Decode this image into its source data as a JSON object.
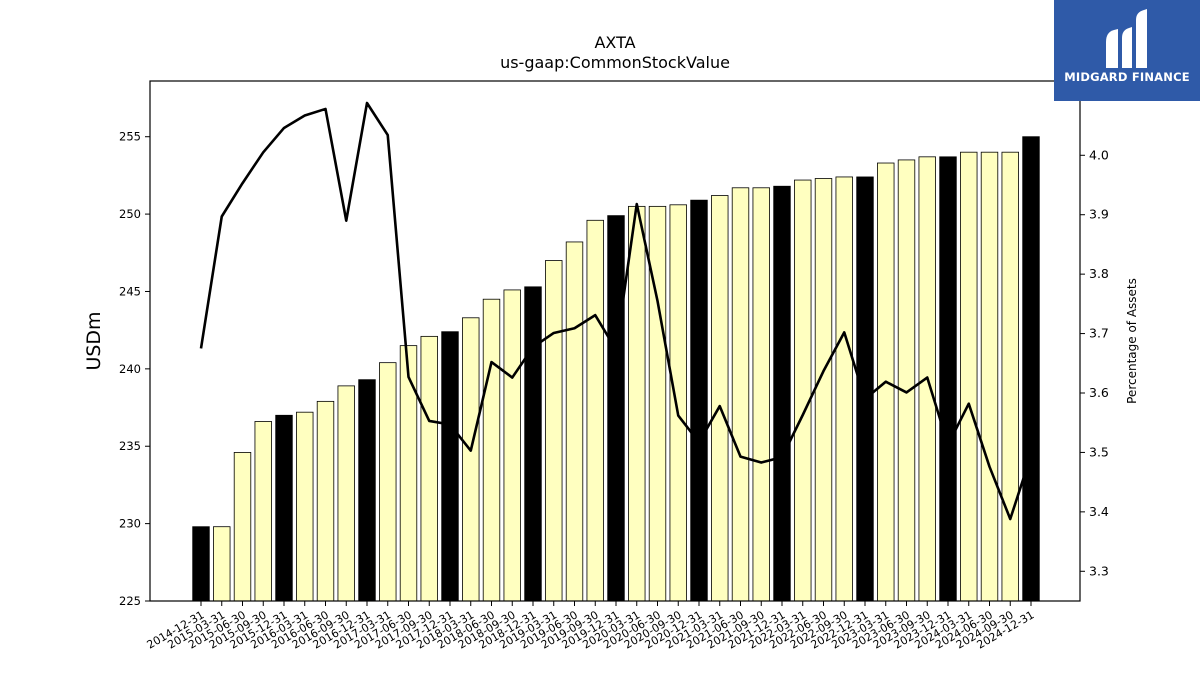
{
  "brand": {
    "name": "MIDGARD FINANCE",
    "background_color": "#2f5aa8",
    "icon": "midgard-logo-icon"
  },
  "chart_data": {
    "type": "bar",
    "title": "AXTA",
    "subtitle": "us-gaap:CommonStockValue",
    "ylabel": "USDm",
    "y2label": "Percentage of Assets",
    "ylim": [
      225,
      258.6
    ],
    "yticks": [
      225,
      230,
      235,
      240,
      245,
      250,
      255
    ],
    "y2lim": [
      3.25,
      4.125
    ],
    "y2ticks": [
      3.3,
      3.4,
      3.5,
      3.6,
      3.7,
      3.8,
      3.9,
      4.0
    ],
    "grid": false,
    "colors": {
      "bar_default": "#ffffc0",
      "bar_highlight": "#000000",
      "line": "#000000"
    },
    "categories": [
      "2014-12-31",
      "2015-03-31",
      "2015-06-30",
      "2015-09-30",
      "2015-12-31",
      "2016-03-31",
      "2016-06-30",
      "2016-09-30",
      "2016-12-31",
      "2017-03-31",
      "2017-06-30",
      "2017-09-30",
      "2017-12-31",
      "2018-03-31",
      "2018-06-30",
      "2018-09-30",
      "2018-12-31",
      "2019-03-31",
      "2019-06-30",
      "2019-09-30",
      "2019-12-31",
      "2020-03-31",
      "2020-06-30",
      "2020-09-30",
      "2020-12-31",
      "2021-03-31",
      "2021-06-30",
      "2021-09-30",
      "2021-12-31",
      "2022-03-31",
      "2022-06-30",
      "2022-09-30",
      "2022-12-31",
      "2023-03-31",
      "2023-06-30",
      "2023-09-30",
      "2023-12-31",
      "2024-03-31",
      "2024-06-30",
      "2024-09-30",
      "2024-12-31"
    ],
    "series": [
      {
        "type": "bar",
        "axis": "left",
        "values": [
          229.8,
          229.8,
          234.6,
          236.6,
          237.0,
          237.2,
          237.9,
          238.9,
          239.3,
          240.4,
          241.5,
          242.1,
          242.4,
          243.3,
          244.5,
          245.1,
          245.3,
          247.0,
          248.2,
          249.6,
          249.9,
          250.5,
          250.5,
          250.6,
          250.9,
          251.2,
          251.7,
          251.7,
          251.8,
          252.2,
          252.3,
          252.4,
          252.4,
          253.3,
          253.5,
          253.7,
          253.7,
          254.0,
          254.0,
          254.0,
          255.0
        ],
        "highlight": [
          true,
          false,
          false,
          false,
          true,
          false,
          false,
          false,
          true,
          false,
          false,
          false,
          true,
          false,
          false,
          false,
          true,
          false,
          false,
          false,
          true,
          false,
          false,
          false,
          true,
          false,
          false,
          false,
          true,
          false,
          false,
          false,
          true,
          false,
          false,
          false,
          true,
          false,
          false,
          false,
          true
        ]
      },
      {
        "type": "line",
        "axis": "right",
        "values": [
          3.675,
          3.897,
          3.953,
          4.005,
          4.046,
          4.067,
          4.078,
          3.89,
          4.088,
          4.034,
          3.627,
          3.553,
          3.547,
          3.503,
          3.652,
          3.626,
          3.677,
          3.701,
          3.709,
          3.731,
          3.673,
          3.918,
          3.755,
          3.562,
          3.517,
          3.578,
          3.493,
          3.483,
          3.492,
          3.563,
          3.637,
          3.702,
          3.59,
          3.619,
          3.601,
          3.626,
          3.513,
          3.582,
          3.476,
          3.388,
          3.495
        ]
      }
    ]
  }
}
